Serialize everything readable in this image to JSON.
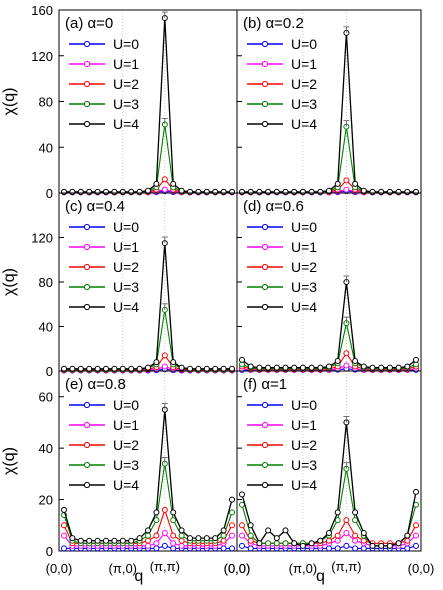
{
  "figure": {
    "ylabel": "χ(q)",
    "xlabel": "q",
    "x_tick_labels": [
      "(0,0)",
      "(π,0)",
      "(π,π)",
      "(0,0)"
    ],
    "series_names": [
      "U=0",
      "U=1",
      "U=2",
      "U=3",
      "U=4"
    ],
    "series_colors": [
      "#0000ff",
      "#ff00ff",
      "#ff0000",
      "#008000",
      "#000000"
    ]
  },
  "chart_data": [
    {
      "type": "line",
      "panel_label": "(a) α=0",
      "ylim": [
        0,
        160
      ],
      "yticks": [
        0,
        40,
        80,
        120,
        160
      ],
      "x": [
        0,
        1,
        2,
        3,
        4,
        5,
        6,
        7,
        8,
        9,
        10,
        11,
        12,
        13,
        14,
        15,
        16,
        17,
        18,
        19,
        20
      ],
      "series": [
        {
          "name": "U=0",
          "values": [
            0.5,
            0.5,
            0.5,
            0.5,
            0.5,
            0.5,
            0.5,
            0.5,
            0.5,
            0.5,
            0.5,
            0.8,
            1.5,
            0.8,
            0.5,
            0.5,
            0.5,
            0.5,
            0.5,
            0.5,
            0.5
          ]
        },
        {
          "name": "U=1",
          "values": [
            0.6,
            0.6,
            0.6,
            0.6,
            0.6,
            0.6,
            0.6,
            0.6,
            0.6,
            0.6,
            0.6,
            1.2,
            3,
            1.2,
            0.6,
            0.6,
            0.6,
            0.6,
            0.6,
            0.6,
            0.6
          ]
        },
        {
          "name": "U=2",
          "values": [
            0.8,
            0.8,
            0.8,
            0.8,
            0.8,
            0.8,
            0.8,
            0.8,
            0.8,
            0.8,
            1,
            3,
            12,
            3,
            1,
            0.8,
            0.8,
            0.8,
            0.8,
            0.8,
            0.8
          ]
        },
        {
          "name": "U=3",
          "values": [
            1,
            1,
            1,
            1,
            1,
            1,
            1,
            1,
            1,
            1,
            1.5,
            5,
            60,
            5,
            1.5,
            1,
            1,
            1,
            1,
            1,
            1
          ]
        },
        {
          "name": "U=4",
          "values": [
            1,
            1,
            1,
            1,
            1,
            1,
            1,
            1,
            1,
            1,
            2,
            8,
            153,
            8,
            2,
            1,
            1,
            1,
            1,
            1,
            1
          ]
        }
      ]
    },
    {
      "type": "line",
      "panel_label": "(b) α=0.2",
      "ylim": [
        0,
        160
      ],
      "yticks": [
        0,
        40,
        80,
        120,
        160
      ],
      "x": [
        0,
        1,
        2,
        3,
        4,
        5,
        6,
        7,
        8,
        9,
        10,
        11,
        12,
        13,
        14,
        15,
        16,
        17,
        18,
        19,
        20
      ],
      "series": [
        {
          "name": "U=0",
          "values": [
            0.5,
            0.5,
            0.5,
            0.5,
            0.5,
            0.5,
            0.5,
            0.5,
            0.5,
            0.5,
            0.5,
            0.8,
            1.5,
            0.8,
            0.5,
            0.5,
            0.5,
            0.5,
            0.5,
            0.5,
            0.5
          ]
        },
        {
          "name": "U=1",
          "values": [
            0.6,
            0.6,
            0.6,
            0.6,
            0.6,
            0.6,
            0.6,
            0.6,
            0.6,
            0.6,
            0.6,
            1.2,
            3,
            1.2,
            0.6,
            0.6,
            0.6,
            0.6,
            0.6,
            0.6,
            0.6
          ]
        },
        {
          "name": "U=2",
          "values": [
            0.8,
            0.8,
            0.8,
            0.8,
            0.8,
            0.8,
            0.8,
            0.8,
            0.8,
            0.8,
            1,
            3,
            11,
            3,
            1,
            0.8,
            0.8,
            0.8,
            0.8,
            0.8,
            0.8
          ]
        },
        {
          "name": "U=3",
          "values": [
            1,
            1,
            1,
            1,
            1,
            1,
            1,
            1,
            1,
            1,
            1.5,
            5,
            58,
            5,
            1.5,
            1,
            1,
            1,
            1,
            1,
            1
          ]
        },
        {
          "name": "U=4",
          "values": [
            1,
            1,
            1,
            1,
            1,
            1,
            1,
            1,
            1,
            1,
            2,
            8,
            140,
            8,
            2,
            1,
            1,
            1,
            1,
            1,
            1
          ]
        }
      ]
    },
    {
      "type": "line",
      "panel_label": "(c) α=0.4",
      "ylim": [
        0,
        160
      ],
      "yticks": [
        0,
        40,
        80,
        120
      ],
      "x": [
        0,
        1,
        2,
        3,
        4,
        5,
        6,
        7,
        8,
        9,
        10,
        11,
        12,
        13,
        14,
        15,
        16,
        17,
        18,
        19,
        20
      ],
      "series": [
        {
          "name": "U=0",
          "values": [
            0.5,
            0.5,
            0.5,
            0.5,
            0.5,
            0.5,
            0.5,
            0.5,
            0.5,
            0.5,
            0.5,
            0.8,
            1.5,
            0.8,
            0.5,
            0.5,
            0.5,
            0.5,
            0.5,
            0.5,
            0.5
          ]
        },
        {
          "name": "U=1",
          "values": [
            0.8,
            0.8,
            0.8,
            0.8,
            0.8,
            0.8,
            0.8,
            0.8,
            0.8,
            0.8,
            1,
            1.5,
            4,
            1.5,
            1,
            0.8,
            0.8,
            0.8,
            0.8,
            0.8,
            0.8
          ]
        },
        {
          "name": "U=2",
          "values": [
            1,
            1,
            1,
            1,
            1,
            1,
            1,
            1,
            1,
            1,
            1.5,
            3.5,
            14,
            3.5,
            1.5,
            1,
            1,
            1,
            1,
            1,
            1
          ]
        },
        {
          "name": "U=3",
          "values": [
            1.5,
            1.5,
            1.5,
            1.5,
            1.5,
            1.5,
            1.5,
            1.5,
            1.5,
            1.5,
            2.5,
            6,
            55,
            6,
            2.5,
            1.5,
            1.5,
            1.5,
            1.5,
            1.5,
            1.5
          ]
        },
        {
          "name": "U=4",
          "values": [
            2,
            2,
            2,
            2,
            2,
            2,
            2,
            2,
            2,
            2,
            3,
            8,
            115,
            8,
            3,
            2,
            2,
            2,
            2,
            2,
            2
          ]
        }
      ]
    },
    {
      "type": "line",
      "panel_label": "(d) α=0.6",
      "ylim": [
        0,
        160
      ],
      "yticks": [
        0,
        40,
        80,
        120
      ],
      "x": [
        0,
        1,
        2,
        3,
        4,
        5,
        6,
        7,
        8,
        9,
        10,
        11,
        12,
        13,
        14,
        15,
        16,
        17,
        18,
        19,
        20
      ],
      "series": [
        {
          "name": "U=0",
          "values": [
            1,
            1,
            1,
            1,
            1,
            1,
            1,
            1,
            1,
            1,
            1,
            1.2,
            2,
            1.2,
            1,
            1,
            1,
            1,
            1,
            1,
            1
          ]
        },
        {
          "name": "U=1",
          "values": [
            2,
            1,
            1,
            1,
            1,
            1,
            1,
            1,
            1,
            1,
            1,
            2,
            5,
            2,
            1,
            1,
            1,
            1,
            1,
            1,
            2
          ]
        },
        {
          "name": "U=2",
          "values": [
            4,
            2,
            1.5,
            1.5,
            1.5,
            1.5,
            1.5,
            1.5,
            1.5,
            1.5,
            2,
            4,
            16,
            4,
            2,
            1.5,
            1.5,
            1.5,
            1.5,
            2,
            4
          ]
        },
        {
          "name": "U=3",
          "values": [
            6,
            3,
            2,
            2,
            2,
            2,
            2,
            2,
            2,
            2,
            3,
            7,
            43,
            7,
            3,
            2,
            2,
            2,
            2,
            3,
            6
          ]
        },
        {
          "name": "U=4",
          "values": [
            10,
            4,
            3,
            3,
            3,
            3,
            3,
            3,
            3,
            3,
            4,
            9,
            80,
            9,
            4,
            3,
            3,
            3,
            3,
            4,
            10
          ]
        }
      ]
    },
    {
      "type": "line",
      "panel_label": "(e) α=0.8",
      "ylim": [
        0,
        70
      ],
      "yticks": [
        0,
        20,
        40,
        60
      ],
      "x": [
        0,
        1,
        2,
        3,
        4,
        5,
        6,
        7,
        8,
        9,
        10,
        11,
        12,
        13,
        14,
        15,
        16,
        17,
        18,
        19,
        20
      ],
      "series": [
        {
          "name": "U=0",
          "values": [
            1,
            1,
            1,
            1,
            1,
            1,
            1,
            1,
            1,
            1,
            1,
            1,
            2,
            1,
            1,
            1,
            1,
            1,
            1,
            1,
            1
          ]
        },
        {
          "name": "U=1",
          "values": [
            6,
            2,
            2,
            2,
            2,
            2,
            2,
            2,
            2,
            2,
            2,
            3,
            7,
            3,
            2,
            2,
            2,
            2,
            2,
            3,
            6
          ]
        },
        {
          "name": "U=2",
          "values": [
            10,
            3,
            3,
            3,
            3,
            3,
            3,
            3,
            3,
            3,
            4,
            6,
            16,
            6,
            4,
            3,
            3,
            3,
            3,
            4,
            10
          ]
        },
        {
          "name": "U=3",
          "values": [
            14,
            4,
            3,
            3,
            3,
            3,
            3,
            3,
            3,
            4,
            6,
            12,
            34,
            12,
            6,
            4,
            4,
            4,
            4,
            6,
            15
          ]
        },
        {
          "name": "U=4",
          "values": [
            16,
            5,
            4,
            4,
            4,
            4,
            4,
            4,
            4,
            5,
            8,
            15,
            55,
            15,
            8,
            5,
            5,
            5,
            5,
            8,
            20
          ]
        }
      ]
    },
    {
      "type": "line",
      "panel_label": "(f) α=1",
      "ylim": [
        0,
        70
      ],
      "yticks": [
        0,
        20,
        40,
        60
      ],
      "x": [
        0,
        1,
        2,
        3,
        4,
        5,
        6,
        7,
        8,
        9,
        10,
        11,
        12,
        13,
        14,
        15,
        16,
        17,
        18,
        19,
        20
      ],
      "series": [
        {
          "name": "U=0",
          "values": [
            2,
            1,
            1,
            1,
            1,
            1,
            1,
            1,
            1,
            1,
            1,
            1,
            2,
            1,
            1,
            1,
            1,
            1,
            1,
            1,
            2
          ]
        },
        {
          "name": "U=1",
          "values": [
            6,
            3,
            2,
            2,
            2,
            2,
            2,
            2,
            2,
            2,
            3,
            4,
            7,
            4,
            3,
            2,
            2,
            2,
            2,
            3,
            6
          ]
        },
        {
          "name": "U=2",
          "values": [
            10,
            4,
            3,
            3,
            3,
            3,
            3,
            3,
            3,
            3,
            4,
            6,
            12,
            6,
            4,
            3,
            3,
            3,
            3,
            4,
            10
          ]
        },
        {
          "name": "U=3",
          "values": [
            18,
            6,
            3,
            3,
            3,
            3,
            3,
            3,
            3,
            4,
            6,
            12,
            32,
            12,
            6,
            2,
            2,
            2,
            3,
            6,
            18
          ]
        },
        {
          "name": "U=4",
          "values": [
            22,
            10,
            3,
            8,
            5,
            8,
            3,
            2,
            3,
            4,
            7,
            15,
            50,
            15,
            7,
            2,
            2,
            2,
            3,
            6,
            23
          ]
        }
      ]
    }
  ]
}
